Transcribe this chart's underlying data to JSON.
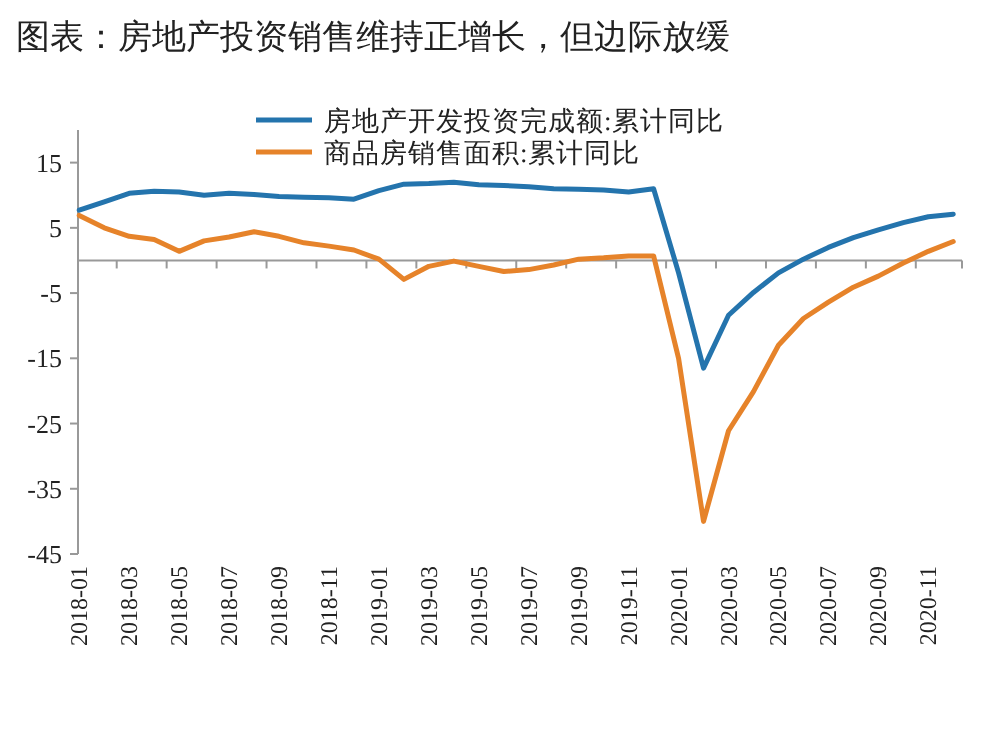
{
  "chart_data": {
    "type": "line",
    "title": "图表：房地产投资销售维持正增长，但边际放缓",
    "categories": [
      "2018-01",
      null,
      "2018-03",
      null,
      "2018-05",
      null,
      "2018-07",
      null,
      "2018-09",
      null,
      "2018-11",
      null,
      "2019-01",
      null,
      "2019-03",
      null,
      "2019-05",
      null,
      "2019-07",
      null,
      "2019-09",
      null,
      "2019-11",
      null,
      "2020-01",
      null,
      "2020-03",
      null,
      "2020-05",
      null,
      "2020-07",
      null,
      "2020-09",
      null,
      "2020-11",
      null
    ],
    "series": [
      {
        "name": "房地产开发投资完成额:累计同比",
        "color": "#2474ad",
        "values": [
          7.7,
          9.0,
          10.3,
          10.6,
          10.5,
          10.0,
          10.3,
          10.1,
          9.8,
          9.7,
          9.6,
          9.4,
          10.7,
          11.7,
          11.8,
          12.0,
          11.6,
          11.5,
          11.3,
          11.0,
          10.9,
          10.8,
          10.5,
          11.0,
          -1.9,
          -16.5,
          -8.4,
          -4.9,
          -1.9,
          0.2,
          2.0,
          3.5,
          4.7,
          5.8,
          6.7,
          7.1
        ]
      },
      {
        "name": "商品房销售面积:累计同比",
        "color": "#e6832a",
        "values": [
          6.9,
          5.0,
          3.7,
          3.2,
          1.4,
          3.0,
          3.6,
          4.4,
          3.7,
          2.7,
          2.2,
          1.6,
          0.2,
          -2.9,
          -0.9,
          -0.1,
          -0.9,
          -1.7,
          -1.4,
          -0.7,
          0.2,
          0.4,
          0.7,
          0.7,
          -15.0,
          -40.0,
          -26.1,
          -20.1,
          -13.0,
          -8.9,
          -6.4,
          -4.1,
          -2.4,
          -0.4,
          1.4,
          2.9
        ]
      }
    ],
    "ylim": [
      -45,
      20
    ],
    "yticks": [
      -45,
      -35,
      -25,
      -15,
      -5,
      5,
      15
    ],
    "legend": "top right",
    "marker": "none"
  }
}
